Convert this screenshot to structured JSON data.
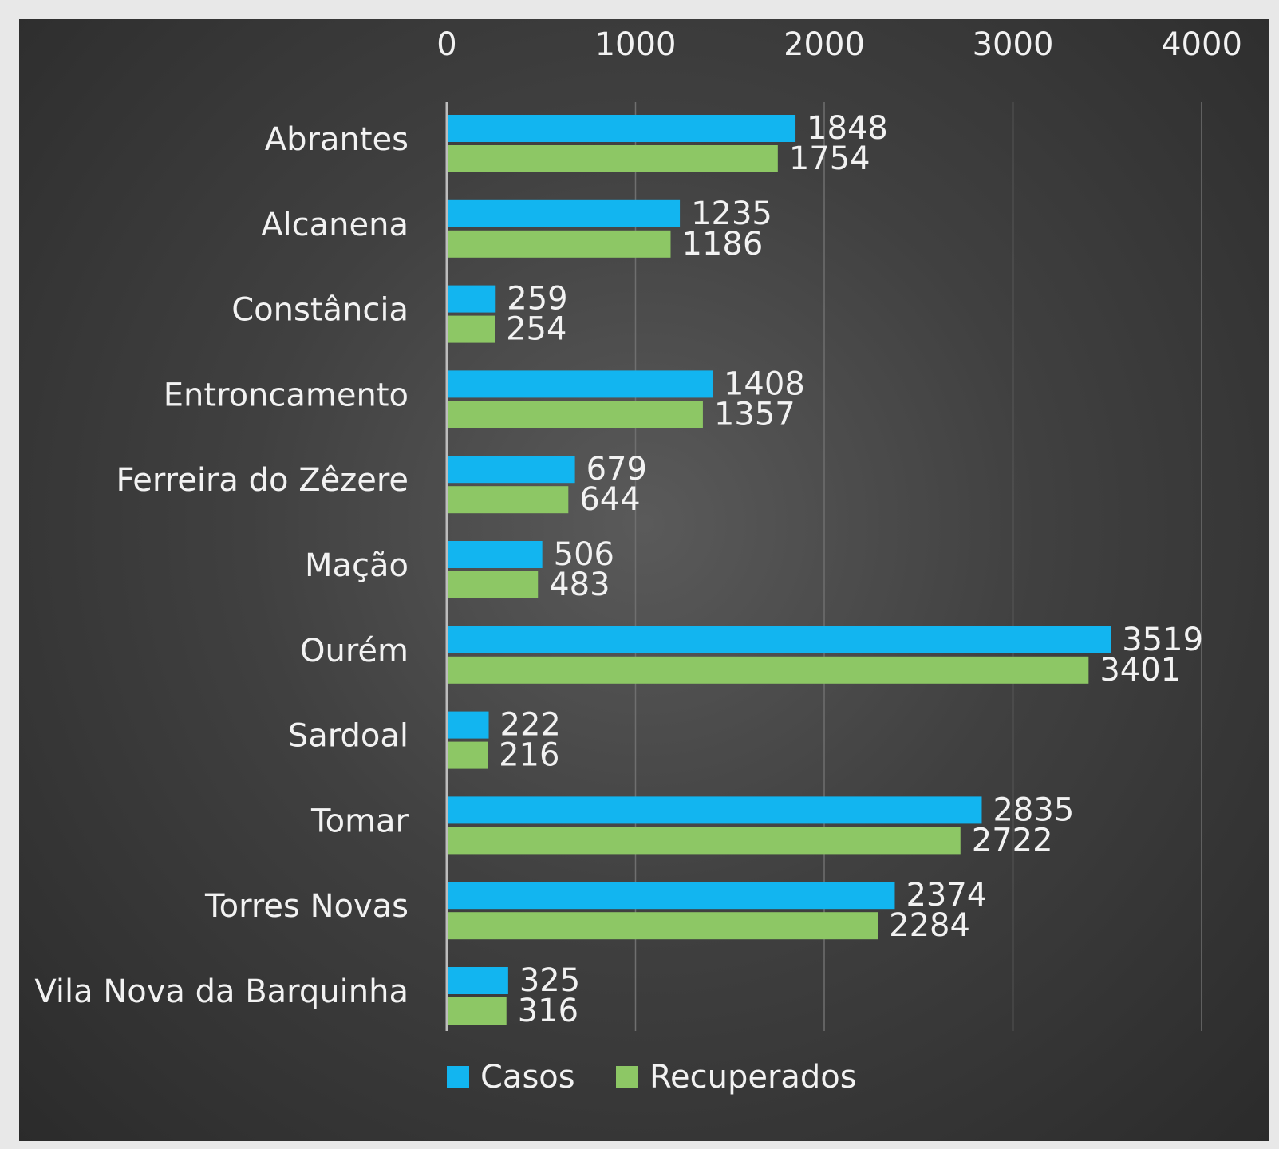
{
  "chart_data": {
    "type": "bar",
    "orientation": "horizontal",
    "categories": [
      "Abrantes",
      "Alcanena",
      "Constância",
      "Entroncamento",
      "Ferreira do Zêzere",
      "Mação",
      "Ourém",
      "Sardoal",
      "Tomar",
      "Torres Novas",
      "Vila Nova da Barquinha"
    ],
    "series": [
      {
        "name": "Casos",
        "color": "#12b5f0",
        "values": [
          1848,
          1235,
          259,
          1408,
          679,
          506,
          3519,
          222,
          2835,
          2374,
          325
        ]
      },
      {
        "name": "Recuperados",
        "color": "#8dc765",
        "values": [
          1754,
          1186,
          254,
          1357,
          644,
          483,
          3401,
          216,
          2722,
          2284,
          316
        ]
      }
    ],
    "xlim": [
      0,
      4000
    ],
    "x_ticks": [
      "0",
      "1000",
      "2000",
      "3000",
      "4000"
    ],
    "x_axis_position": "top",
    "grid": true,
    "data_labels": true,
    "legend_position": "bottom",
    "title": "",
    "xlabel": "",
    "ylabel": ""
  }
}
